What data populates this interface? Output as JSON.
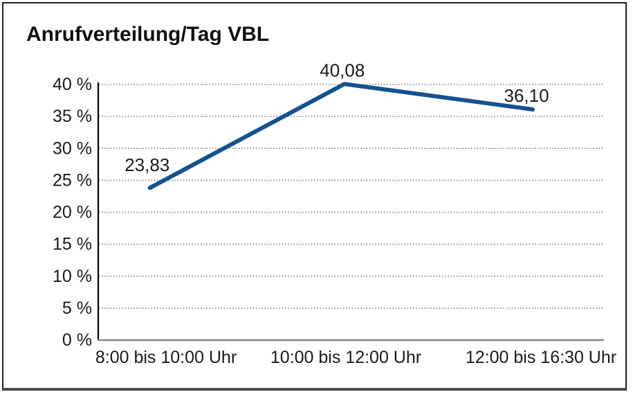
{
  "window": {
    "title": "Anrufverteilung/Tag VBL"
  },
  "chart_data": {
    "type": "line",
    "title": "Anrufverteilung/Tag VBL",
    "categories": [
      "8:00 bis 10:00 Uhr",
      "10:00 bis 12:00 Uhr",
      "12:00 bis 16:30 Uhr"
    ],
    "series": [
      {
        "values": [
          23.83,
          40.08,
          36.1
        ],
        "point_labels": [
          "23,83",
          "40,08",
          "36,10"
        ],
        "color": "#15518f"
      }
    ],
    "xlabel": "",
    "ylabel": "",
    "ylim": [
      0,
      40
    ],
    "ytick_step": 5,
    "ytick_labels": [
      "0 %",
      "5 %",
      "10 %",
      "15 %",
      "20 %",
      "25 %",
      "30 %",
      "35 %",
      "40 %"
    ],
    "grid": "horizontal-dotted",
    "legend_position": "none"
  },
  "colors": {
    "line": "#15518f",
    "gridline": "#7a7a7a",
    "y_axis": "#000000",
    "x_axis": "#858585",
    "text": "#1a1a1a",
    "border": "#1f1f1f",
    "background": "#ffffff"
  }
}
